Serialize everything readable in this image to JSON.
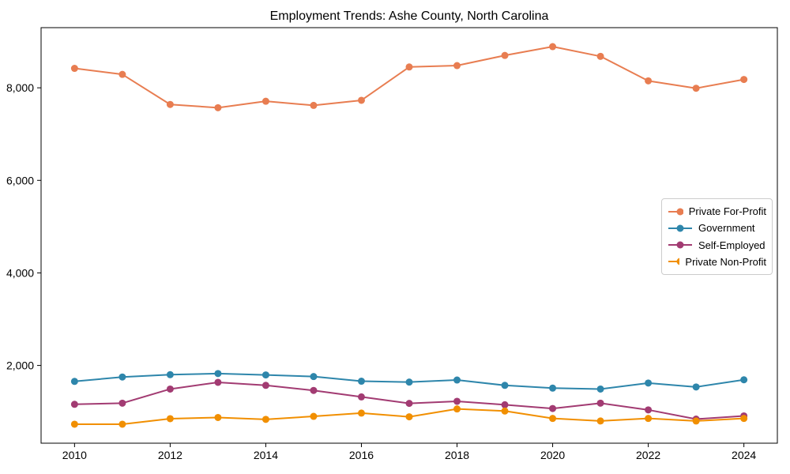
{
  "chart_data": {
    "type": "line",
    "title": "Employment Trends: Ashe County, North Carolina",
    "xlabel": "",
    "ylabel": "",
    "x": [
      2010,
      2011,
      2012,
      2013,
      2014,
      2015,
      2016,
      2017,
      2018,
      2019,
      2020,
      2021,
      2022,
      2023,
      2024
    ],
    "series": [
      {
        "name": "Private For-Profit",
        "color": "#e87d51",
        "values": [
          8420,
          8290,
          7640,
          7570,
          7710,
          7620,
          7730,
          8450,
          8480,
          8700,
          8890,
          8680,
          8150,
          7990,
          8180
        ]
      },
      {
        "name": "Government",
        "color": "#2e86ab",
        "values": [
          1655,
          1750,
          1800,
          1825,
          1795,
          1760,
          1660,
          1640,
          1685,
          1570,
          1510,
          1490,
          1620,
          1535,
          1690
        ]
      },
      {
        "name": "Self-Employed",
        "color": "#a23b72",
        "values": [
          1160,
          1185,
          1490,
          1635,
          1570,
          1460,
          1320,
          1180,
          1225,
          1150,
          1070,
          1185,
          1040,
          840,
          910
        ]
      },
      {
        "name": "Private Non-Profit",
        "color": "#f18f01",
        "values": [
          730,
          730,
          850,
          875,
          835,
          900,
          970,
          890,
          1060,
          1015,
          855,
          800,
          855,
          800,
          855
        ]
      }
    ],
    "xticks": [
      2010,
      2012,
      2014,
      2016,
      2018,
      2020,
      2022,
      2024
    ],
    "yticks": [
      2000,
      4000,
      6000,
      8000
    ],
    "ytick_labels": [
      "2,000",
      "4,000",
      "6,000",
      "8,000"
    ],
    "xlim": [
      2009.3,
      2024.7
    ],
    "ylim": [
      320,
      9300
    ],
    "grid": false,
    "legend_position": "center right",
    "marker": "circle",
    "background_color": "#ffffff",
    "axis_color": "#000000"
  }
}
